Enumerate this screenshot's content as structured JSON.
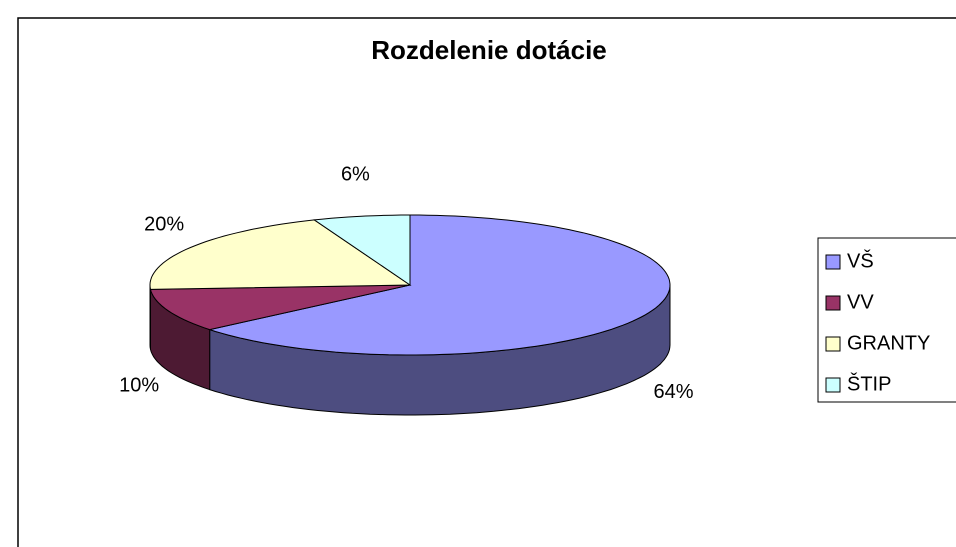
{
  "chart_data": {
    "type": "pie3d",
    "title": "Rozdelenie dotácie",
    "categories": [
      "VŠ",
      "VV",
      "GRANTY",
      "ŠTIP"
    ],
    "values": [
      64,
      10,
      20,
      6
    ],
    "value_labels": [
      "64%",
      "10%",
      "20%",
      "6%"
    ],
    "colors": [
      "#9999ff",
      "#993366",
      "#ffffcc",
      "#ccffff"
    ],
    "legend": "right"
  }
}
